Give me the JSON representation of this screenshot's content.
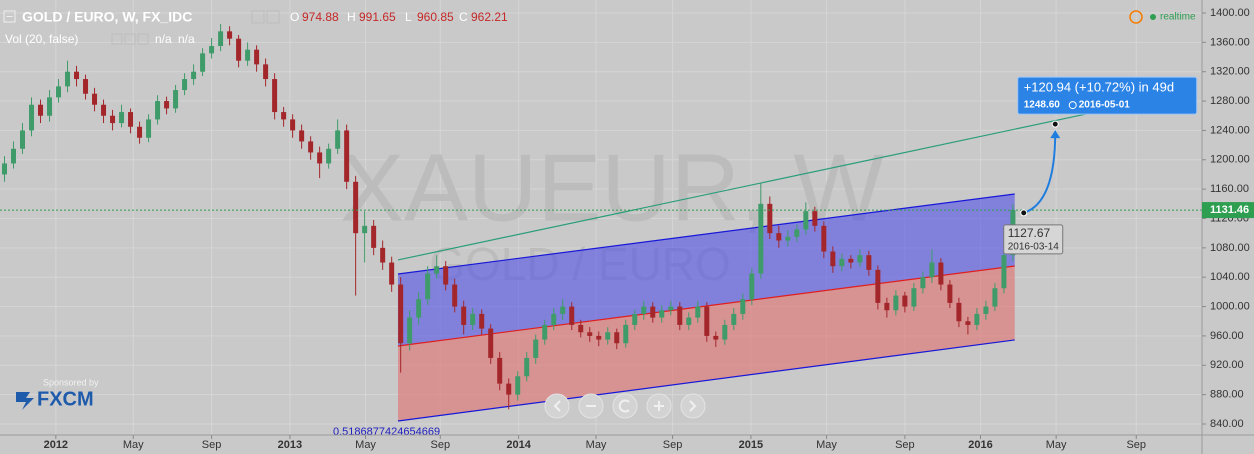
{
  "chart_data": {
    "type": "candlestick",
    "title": "GOLD / EURO, W, FX_IDC",
    "ohlc_legend": [
      {
        "label": "O",
        "value": 974.88
      },
      {
        "label": "H",
        "value": 991.65
      },
      {
        "label": "L",
        "value": 960.85
      },
      {
        "label": "C",
        "value": 962.21
      }
    ],
    "volume_label": "Vol (20, false)",
    "volume_values": [
      "n/a",
      "n/a"
    ],
    "status": "realtime",
    "watermark": "XAUEUR, W",
    "watermark_sub": "GOLD / EURO",
    "sponsor": "Sponsored by",
    "sponsor_name": "FXCM",
    "up_color": "#3f9b6a",
    "down_color": "#a3262b",
    "xlim": [
      -0.5,
      133
    ],
    "ylim": [
      825,
      1417.7
    ],
    "grid": true,
    "xticks": [
      {
        "value": 5.7,
        "label": "2012"
      },
      {
        "value": 14.3,
        "label": "May"
      },
      {
        "value": 23,
        "label": "Sep"
      },
      {
        "value": 31.7,
        "label": "2013"
      },
      {
        "value": 40.1,
        "label": "May"
      },
      {
        "value": 48.4,
        "label": "Sep"
      },
      {
        "value": 57.1,
        "label": "2014"
      },
      {
        "value": 65.7,
        "label": "May"
      },
      {
        "value": 74.2,
        "label": "Sep"
      },
      {
        "value": 82.9,
        "label": "2015"
      },
      {
        "value": 91.3,
        "label": "May"
      },
      {
        "value": 100,
        "label": "Sep"
      },
      {
        "value": 108.4,
        "label": "2016"
      },
      {
        "value": 116.8,
        "label": "May"
      },
      {
        "value": 125.7,
        "label": "Sep"
      }
    ],
    "yticks": [
      {
        "value": 1400,
        "label": "1400.00"
      },
      {
        "value": 1360,
        "label": "1360.00"
      },
      {
        "value": 1320,
        "label": "1320.00"
      },
      {
        "value": 1280,
        "label": "1280.00"
      },
      {
        "value": 1240,
        "label": "1240.00"
      },
      {
        "value": 1200,
        "label": "1200.00"
      },
      {
        "value": 1160,
        "label": "1160.00"
      },
      {
        "value": 1120,
        "label": "1120.00"
      },
      {
        "value": 1080,
        "label": "1080.00"
      },
      {
        "value": 1040,
        "label": "1040.00"
      },
      {
        "value": 1000,
        "label": "1000.00"
      },
      {
        "value": 960,
        "label": "960.00"
      },
      {
        "value": 920,
        "label": "920.00"
      },
      {
        "value": 880,
        "label": "880.00"
      },
      {
        "value": 840,
        "label": "840.00"
      }
    ],
    "last_price": 1131.46,
    "ohlc": [
      [
        1180,
        1205,
        1170,
        1195
      ],
      [
        1195,
        1225,
        1188,
        1215
      ],
      [
        1215,
        1250,
        1208,
        1240
      ],
      [
        1240,
        1285,
        1232,
        1275
      ],
      [
        1275,
        1282,
        1250,
        1260
      ],
      [
        1260,
        1295,
        1252,
        1285
      ],
      [
        1285,
        1310,
        1278,
        1300
      ],
      [
        1300,
        1335,
        1292,
        1320
      ],
      [
        1320,
        1328,
        1300,
        1310
      ],
      [
        1310,
        1316,
        1282,
        1290
      ],
      [
        1290,
        1298,
        1266,
        1275
      ],
      [
        1275,
        1282,
        1250,
        1260
      ],
      [
        1260,
        1268,
        1240,
        1250
      ],
      [
        1250,
        1275,
        1244,
        1265
      ],
      [
        1265,
        1270,
        1236,
        1245
      ],
      [
        1245,
        1252,
        1222,
        1230
      ],
      [
        1230,
        1262,
        1224,
        1255
      ],
      [
        1255,
        1288,
        1248,
        1280
      ],
      [
        1280,
        1286,
        1262,
        1270
      ],
      [
        1270,
        1302,
        1264,
        1295
      ],
      [
        1295,
        1318,
        1288,
        1310
      ],
      [
        1310,
        1330,
        1302,
        1320
      ],
      [
        1320,
        1352,
        1314,
        1345
      ],
      [
        1345,
        1366,
        1338,
        1355
      ],
      [
        1355,
        1385,
        1348,
        1375
      ],
      [
        1375,
        1382,
        1356,
        1365
      ],
      [
        1365,
        1370,
        1326,
        1335
      ],
      [
        1335,
        1360,
        1328,
        1350
      ],
      [
        1350,
        1356,
        1320,
        1330
      ],
      [
        1330,
        1338,
        1300,
        1310
      ],
      [
        1310,
        1318,
        1255,
        1265
      ],
      [
        1265,
        1272,
        1245,
        1255
      ],
      [
        1255,
        1262,
        1230,
        1240
      ],
      [
        1240,
        1248,
        1215,
        1225
      ],
      [
        1225,
        1232,
        1200,
        1210
      ],
      [
        1210,
        1218,
        1175,
        1195
      ],
      [
        1195,
        1222,
        1188,
        1215
      ],
      [
        1215,
        1255,
        1208,
        1240
      ],
      [
        1240,
        1248,
        1160,
        1170
      ],
      [
        1170,
        1178,
        1015,
        1100
      ],
      [
        1100,
        1130,
        1060,
        1110
      ],
      [
        1110,
        1118,
        1070,
        1080
      ],
      [
        1080,
        1090,
        1050,
        1060
      ],
      [
        1060,
        1068,
        1020,
        1030
      ],
      [
        1030,
        1040,
        910,
        950
      ],
      [
        950,
        995,
        940,
        985
      ],
      [
        985,
        1020,
        975,
        1010
      ],
      [
        1010,
        1055,
        1002,
        1045
      ],
      [
        1045,
        1070,
        1038,
        1055
      ],
      [
        1055,
        1062,
        1022,
        1030
      ],
      [
        1030,
        1038,
        992,
        1000
      ],
      [
        1000,
        1008,
        962,
        975
      ],
      [
        975,
        998,
        968,
        990
      ],
      [
        990,
        996,
        962,
        970
      ],
      [
        970,
        976,
        922,
        930
      ],
      [
        930,
        938,
        886,
        895
      ],
      [
        895,
        902,
        860,
        880
      ],
      [
        880,
        912,
        872,
        905
      ],
      [
        905,
        938,
        898,
        930
      ],
      [
        930,
        962,
        922,
        955
      ],
      [
        955,
        982,
        948,
        975
      ],
      [
        975,
        998,
        968,
        990
      ],
      [
        990,
        1010,
        982,
        1000
      ],
      [
        1000,
        1006,
        968,
        975
      ],
      [
        975,
        982,
        958,
        965
      ],
      [
        965,
        972,
        952,
        960
      ],
      [
        960,
        966,
        946,
        955
      ],
      [
        955,
        972,
        948,
        965
      ],
      [
        965,
        970,
        942,
        950
      ],
      [
        950,
        982,
        944,
        975
      ],
      [
        975,
        996,
        968,
        990
      ],
      [
        990,
        1008,
        982,
        1000
      ],
      [
        1000,
        1006,
        978,
        985
      ],
      [
        985,
        1002,
        978,
        995
      ],
      [
        995,
        1008,
        988,
        1000
      ],
      [
        1000,
        1006,
        968,
        975
      ],
      [
        975,
        992,
        968,
        985
      ],
      [
        985,
        1008,
        978,
        1000
      ],
      [
        1000,
        1006,
        952,
        960
      ],
      [
        960,
        966,
        945,
        955
      ],
      [
        955,
        982,
        948,
        975
      ],
      [
        975,
        998,
        968,
        990
      ],
      [
        990,
        1018,
        982,
        1010
      ],
      [
        1010,
        1052,
        1002,
        1045
      ],
      [
        1045,
        1168,
        1038,
        1140
      ],
      [
        1140,
        1150,
        1092,
        1100
      ],
      [
        1100,
        1110,
        1080,
        1090
      ],
      [
        1090,
        1104,
        1082,
        1095
      ],
      [
        1095,
        1112,
        1088,
        1105
      ],
      [
        1105,
        1142,
        1098,
        1130
      ],
      [
        1130,
        1136,
        1102,
        1110
      ],
      [
        1110,
        1116,
        1066,
        1075
      ],
      [
        1075,
        1082,
        1046,
        1055
      ],
      [
        1055,
        1072,
        1048,
        1065
      ],
      [
        1065,
        1070,
        1052,
        1060
      ],
      [
        1060,
        1078,
        1054,
        1070
      ],
      [
        1070,
        1076,
        1042,
        1050
      ],
      [
        1050,
        1056,
        996,
        1005
      ],
      [
        1005,
        1012,
        985,
        995
      ],
      [
        995,
        1022,
        988,
        1015
      ],
      [
        1015,
        1020,
        992,
        1000
      ],
      [
        1000,
        1032,
        994,
        1025
      ],
      [
        1025,
        1048,
        1018,
        1040
      ],
      [
        1040,
        1078,
        1032,
        1060
      ],
      [
        1060,
        1066,
        1022,
        1030
      ],
      [
        1030,
        1036,
        998,
        1005
      ],
      [
        1005,
        1012,
        972,
        980
      ],
      [
        980,
        986,
        962,
        975
      ],
      [
        975,
        998,
        968,
        990
      ],
      [
        990,
        1008,
        982,
        1000
      ],
      [
        1000,
        1032,
        994,
        1025
      ],
      [
        1025,
        1078,
        1018,
        1070
      ],
      [
        1070,
        1140,
        1062,
        1131.46
      ]
    ],
    "channel": {
      "x": [
        43.7,
        112.2
      ],
      "upper": [
        1044.4,
        1153.4
      ],
      "middle": [
        946.3,
        1055.3
      ],
      "lower": [
        844.1,
        954.5
      ],
      "label": "0.5186877424654669"
    },
    "trend_line": {
      "x": [
        43.7,
        120.7
      ],
      "y": [
        1063.5,
        1263.8
      ]
    },
    "projection": {
      "label": "+120.94 (+10.72%) in 49d",
      "target_price": {
        "value": 1248.6,
        "label": "1248.60"
      },
      "target_date": "2016-05-01",
      "from": {
        "x": 113.2,
        "y": 1127.67
      },
      "to": {
        "x": 116.7,
        "y": 1248.6
      },
      "start_price": 1127.67,
      "start_date": "2016-03-14"
    }
  }
}
